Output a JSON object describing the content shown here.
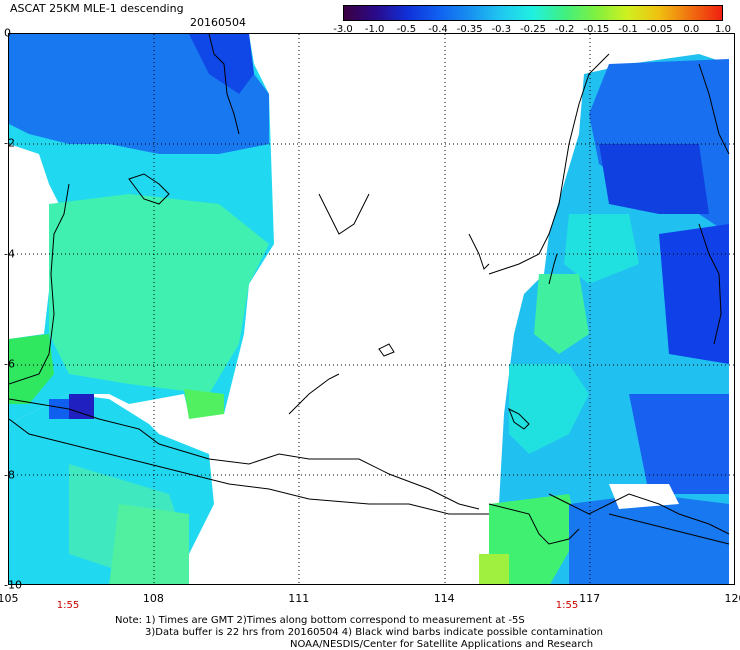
{
  "header": {
    "title": "ASCAT 25KM MLE-1 descending",
    "date": "20160504"
  },
  "colorbar": {
    "labels": [
      "-3.0",
      "-1.0",
      "-0.5",
      "-0.4",
      "-0.35",
      "-0.3",
      "-0.25",
      "-0.2",
      "-0.15",
      "-0.1",
      "-0.05",
      "0.0",
      "1.0"
    ],
    "colors": [
      "#3b0040",
      "#2a0a8a",
      "#1030d8",
      "#1060f0",
      "#1890f0",
      "#20c8f0",
      "#20f0e0",
      "#40f080",
      "#80f040",
      "#d0f020",
      "#f0c010",
      "#f07010",
      "#f02010"
    ]
  },
  "map": {
    "x_ticks": [
      "105",
      "108",
      "111",
      "114",
      "117",
      "120"
    ],
    "y_ticks": [
      "0",
      "-2",
      "-4",
      "-6",
      "-8",
      "-10"
    ],
    "times": [
      "1:55",
      "1:55"
    ],
    "lon_range": [
      105,
      120
    ],
    "lat_range": [
      0,
      -10
    ]
  },
  "notes": {
    "line1": "Note: 1) Times are GMT 2)Times along bottom correspond to measurement at -5S",
    "line2": "3)Data buffer is 22 hrs from 20160504 4) Black wind barbs indicate possible contamination",
    "line3": "NOAA/NESDIS/Center for Satellite Applications and Research"
  }
}
